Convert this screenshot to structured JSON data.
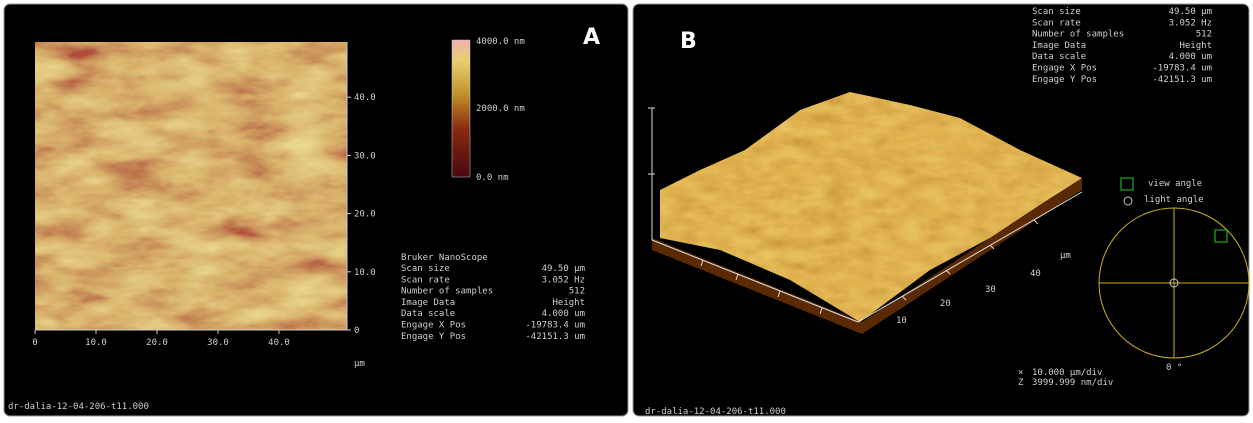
{
  "panel_a": {
    "label": "A",
    "colorbar": [
      "4000.0 nm",
      "2000.0 nm",
      "0.0 nm"
    ],
    "x_ticks": [
      "0",
      "10.0",
      "20.0",
      "30.0",
      "40.0"
    ],
    "y_ticks": [
      "0",
      "10.0",
      "20.0",
      "30.0",
      "40.0"
    ],
    "unit": "µm",
    "info_header": "Bruker NanoScope",
    "info": [
      [
        "Scan size",
        "49.50 µm"
      ],
      [
        "Scan rate",
        "3.052 Hz"
      ],
      [
        "Number of samples",
        "512"
      ],
      [
        "Image Data",
        "Height"
      ],
      [
        "Data scale",
        "4.000 um"
      ],
      [
        "Engage X Pos",
        "-19783.4 um"
      ],
      [
        "Engage Y Pos",
        "-42151.3 um"
      ]
    ],
    "filename": "dr-dalia-12-04-206-t11.000"
  },
  "panel_b": {
    "label": "B",
    "info": [
      [
        "Scan size",
        "49.50 µm"
      ],
      [
        "Scan rate",
        "3.052 Hz"
      ],
      [
        "Number of samples",
        "512"
      ],
      [
        "Image Data",
        "Height"
      ],
      [
        "Data scale",
        "4.000 um"
      ],
      [
        "Engage X Pos",
        "-19783.4 um"
      ],
      [
        "Engage Y Pos",
        "-42151.3 um"
      ]
    ],
    "axis_ticks": [
      "10",
      "20",
      "30",
      "40"
    ],
    "unit": "µm",
    "view_angle": "view angle",
    "light_angle": "light angle",
    "angle_zero": "0 °",
    "scale": [
      [
        "×",
        "10.000 µm/div"
      ],
      [
        "Z",
        "3999.999 nm/div"
      ]
    ],
    "filename": "dr-dalia-12-04-206-t11.000"
  }
}
